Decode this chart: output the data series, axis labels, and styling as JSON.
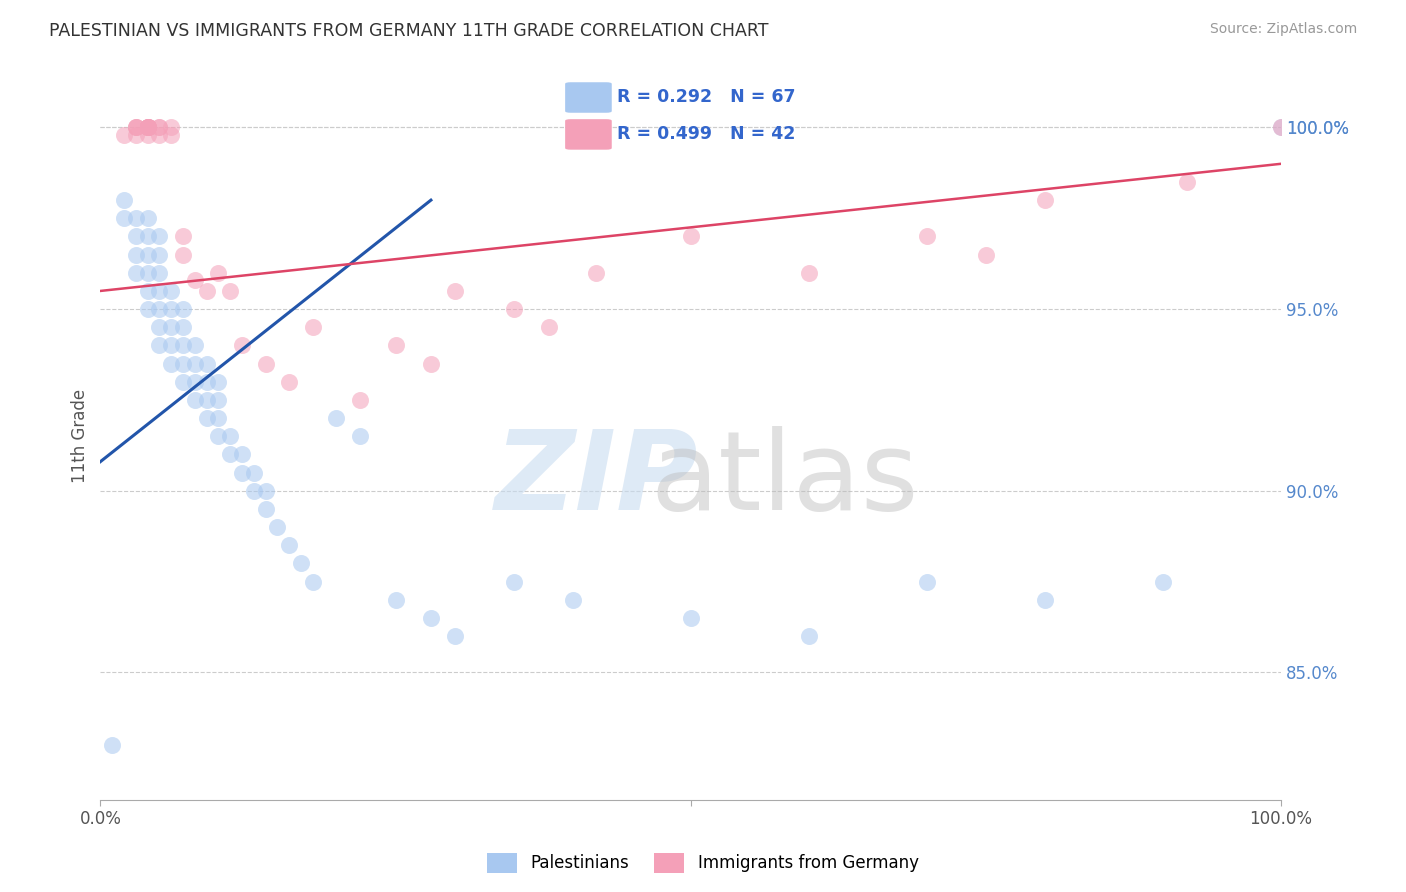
{
  "title": "PALESTINIAN VS IMMIGRANTS FROM GERMANY 11TH GRADE CORRELATION CHART",
  "source": "Source: ZipAtlas.com",
  "ylabel": "11th Grade",
  "yticks": [
    0.85,
    0.9,
    0.95,
    1.0
  ],
  "ytick_labels": [
    "85.0%",
    "90.0%",
    "95.0%",
    "100.0%"
  ],
  "xlim": [
    0.0,
    1.0
  ],
  "ylim": [
    0.815,
    1.015
  ],
  "legend_label_blue": "Palestinians",
  "legend_label_pink": "Immigrants from Germany",
  "R_blue": 0.292,
  "N_blue": 67,
  "R_pink": 0.499,
  "N_pink": 42,
  "color_blue": "#A8C8F0",
  "color_pink": "#F4A0B8",
  "line_color_blue": "#2255AA",
  "line_color_pink": "#DD4466",
  "blue_x": [
    0.01,
    0.02,
    0.02,
    0.03,
    0.03,
    0.03,
    0.03,
    0.04,
    0.04,
    0.04,
    0.04,
    0.04,
    0.04,
    0.05,
    0.05,
    0.05,
    0.05,
    0.05,
    0.05,
    0.05,
    0.06,
    0.06,
    0.06,
    0.06,
    0.06,
    0.07,
    0.07,
    0.07,
    0.07,
    0.07,
    0.08,
    0.08,
    0.08,
    0.08,
    0.09,
    0.09,
    0.09,
    0.09,
    0.1,
    0.1,
    0.1,
    0.1,
    0.11,
    0.11,
    0.12,
    0.12,
    0.13,
    0.13,
    0.14,
    0.14,
    0.15,
    0.16,
    0.17,
    0.18,
    0.2,
    0.22,
    0.25,
    0.28,
    0.3,
    0.35,
    0.4,
    0.5,
    0.6,
    0.7,
    0.8,
    0.9,
    1.0
  ],
  "blue_y": [
    0.83,
    0.975,
    0.98,
    0.96,
    0.965,
    0.97,
    0.975,
    0.95,
    0.955,
    0.96,
    0.965,
    0.97,
    0.975,
    0.94,
    0.945,
    0.95,
    0.955,
    0.96,
    0.965,
    0.97,
    0.935,
    0.94,
    0.945,
    0.95,
    0.955,
    0.93,
    0.935,
    0.94,
    0.945,
    0.95,
    0.925,
    0.93,
    0.935,
    0.94,
    0.92,
    0.925,
    0.93,
    0.935,
    0.915,
    0.92,
    0.925,
    0.93,
    0.91,
    0.915,
    0.905,
    0.91,
    0.9,
    0.905,
    0.895,
    0.9,
    0.89,
    0.885,
    0.88,
    0.875,
    0.92,
    0.915,
    0.87,
    0.865,
    0.86,
    0.875,
    0.87,
    0.865,
    0.86,
    0.875,
    0.87,
    0.875,
    1.0
  ],
  "pink_x": [
    0.02,
    0.03,
    0.03,
    0.03,
    0.03,
    0.04,
    0.04,
    0.04,
    0.04,
    0.04,
    0.04,
    0.04,
    0.04,
    0.05,
    0.05,
    0.05,
    0.06,
    0.06,
    0.07,
    0.07,
    0.08,
    0.09,
    0.1,
    0.11,
    0.12,
    0.14,
    0.16,
    0.18,
    0.22,
    0.25,
    0.28,
    0.3,
    0.35,
    0.38,
    0.42,
    0.5,
    0.6,
    0.7,
    0.75,
    0.8,
    0.92,
    1.0
  ],
  "pink_y": [
    0.998,
    0.998,
    1.0,
    1.0,
    1.0,
    0.998,
    1.0,
    1.0,
    1.0,
    1.0,
    1.0,
    1.0,
    1.0,
    0.998,
    1.0,
    1.0,
    0.998,
    1.0,
    0.965,
    0.97,
    0.958,
    0.955,
    0.96,
    0.955,
    0.94,
    0.935,
    0.93,
    0.945,
    0.925,
    0.94,
    0.935,
    0.955,
    0.95,
    0.945,
    0.96,
    0.97,
    0.96,
    0.97,
    0.965,
    0.98,
    0.985,
    1.0
  ],
  "trend_blue_x0": 0.0,
  "trend_blue_y0": 0.908,
  "trend_blue_x1": 0.28,
  "trend_blue_y1": 0.98,
  "trend_pink_x0": 0.0,
  "trend_pink_y0": 0.955,
  "trend_pink_x1": 1.0,
  "trend_pink_y1": 0.99
}
